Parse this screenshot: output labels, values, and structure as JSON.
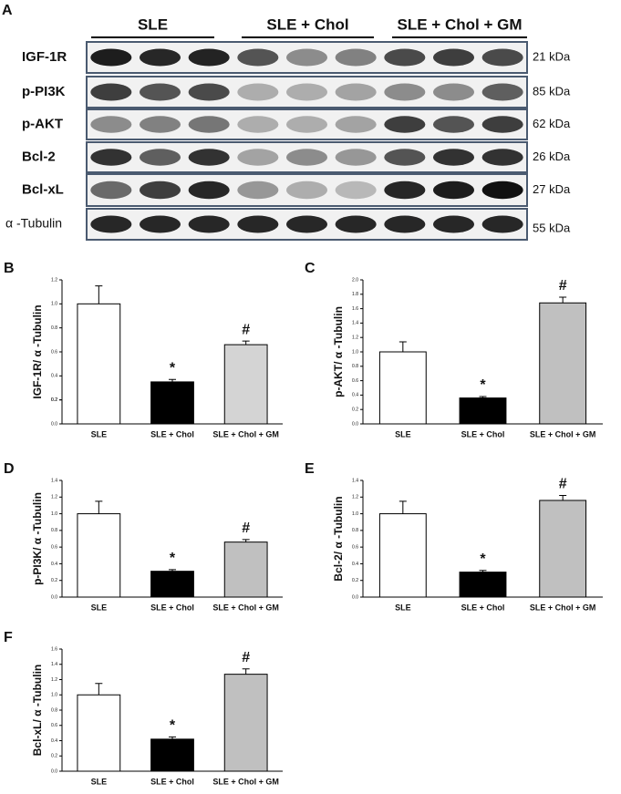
{
  "blot": {
    "panel_label": "A",
    "groups": [
      "SLE",
      "SLE + Chol",
      "SLE + Chol + GM"
    ],
    "rows": [
      {
        "label": "IGF-1R",
        "size": "21 kDa"
      },
      {
        "label": "p-PI3K",
        "size": "85 kDa"
      },
      {
        "label": "p-AKT",
        "size": "62 kDa"
      },
      {
        "label": "Bcl-2",
        "size": "26 kDa"
      },
      {
        "label": "Bcl-xL",
        "size": "27 kDa"
      },
      {
        "label": "α -Tubulin",
        "size": "55 kDa"
      }
    ]
  },
  "chart_data": [
    {
      "type": "bar",
      "panel_label": "B",
      "y_label": "IGF-1R/ α -Tubulin",
      "categories": [
        "SLE",
        "SLE + Chol",
        "SLE + Chol + GM"
      ],
      "values": [
        1.0,
        0.35,
        0.66
      ],
      "errors": [
        0.15,
        0.02,
        0.03
      ],
      "colors": [
        "#ffffff",
        "#000000",
        "#d4d4d4"
      ],
      "annotations": [
        null,
        "*",
        "#"
      ],
      "ylim": [
        0,
        1.2
      ],
      "yticks": [
        {
          "value": 0,
          "label": "0.0"
        },
        0.2,
        0.4,
        0.6,
        0.8,
        {
          "value": 1,
          "label": "1.0"
        },
        0.2,
        1.2
      ]
    },
    {
      "type": "bar",
      "panel_label": "C",
      "y_label": "p-AKT/ α -Tubulin",
      "categories": [
        "SLE",
        "SLE + Chol",
        "SLE + Chol + GM"
      ],
      "values": [
        1.0,
        0.36,
        1.68
      ],
      "errors": [
        0.14,
        0.02,
        0.08
      ],
      "colors": [
        "#ffffff",
        "#000000",
        "#c0c0c0"
      ],
      "annotations": [
        null,
        "*",
        "#"
      ],
      "ylim": [
        0,
        2.0
      ],
      "yticks": [
        {
          "value": 0,
          "label": "0.0"
        },
        0.2,
        0.4,
        0.6,
        0.8,
        {
          "value": 1,
          "label": "1.0"
        },
        1.2,
        1.4,
        1.6,
        1.8,
        {
          "value": 2,
          "label": "2.0"
        }
      ]
    },
    {
      "type": "bar",
      "panel_label": "D",
      "y_label": "p-PI3K/ α -Tubulin",
      "categories": [
        "SLE",
        "SLE + Chol",
        "SLE + Chol + GM"
      ],
      "values": [
        1.0,
        0.31,
        0.66
      ],
      "errors": [
        0.15,
        0.02,
        0.03
      ],
      "colors": [
        "#ffffff",
        "#000000",
        "#c0c0c0"
      ],
      "annotations": [
        null,
        "*",
        "#"
      ],
      "ylim": [
        0,
        1.4
      ],
      "yticks": [
        {
          "value": 0,
          "label": "0.0"
        },
        0.2,
        0.4,
        0.6,
        0.8,
        {
          "value": 1,
          "label": "1.0"
        },
        1.2,
        1.4
      ]
    },
    {
      "type": "bar",
      "panel_label": "E",
      "y_label": "Bcl-2/ α -Tubulin",
      "categories": [
        "SLE",
        "SLE + Chol",
        "SLE + Chol + GM"
      ],
      "values": [
        1.0,
        0.3,
        1.16
      ],
      "errors": [
        0.15,
        0.02,
        0.06
      ],
      "colors": [
        "#ffffff",
        "#000000",
        "#c0c0c0"
      ],
      "annotations": [
        null,
        "*",
        "#"
      ],
      "ylim": [
        0,
        1.4
      ],
      "yticks": [
        {
          "value": 0,
          "label": "0.0"
        },
        0.2,
        0.4,
        0.6,
        0.8,
        {
          "value": 1,
          "label": "1.0"
        },
        1.2,
        1.4
      ]
    },
    {
      "type": "bar",
      "panel_label": "F",
      "y_label": "Bcl-xL/ α -Tubulin",
      "categories": [
        "SLE",
        "SLE + Chol",
        "SLE + Chol + GM"
      ],
      "values": [
        1.0,
        0.42,
        1.27
      ],
      "errors": [
        0.15,
        0.03,
        0.07
      ],
      "colors": [
        "#ffffff",
        "#000000",
        "#c0c0c0"
      ],
      "annotations": [
        null,
        "*",
        "#"
      ],
      "ylim": [
        0,
        1.6
      ],
      "yticks": [
        {
          "value": 0,
          "label": "0.0"
        },
        0.2,
        0.4,
        0.6,
        0.8,
        {
          "value": 1,
          "label": "1.0"
        },
        1.2,
        1.4,
        1.6
      ]
    }
  ]
}
